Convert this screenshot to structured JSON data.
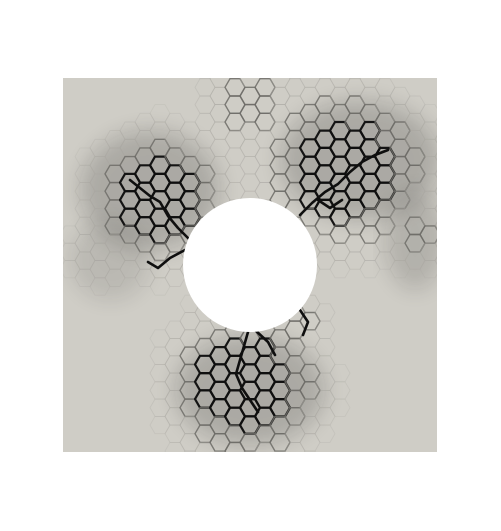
{
  "figure": {
    "plate_color": "#cfcdc6",
    "hole_color": "#ffffff",
    "crack_dark_color": "#0f0f0f",
    "crack_mid_color": "#6e6d69",
    "crack_light_color": "#a9a7a1",
    "background_color": "#ffffff"
  }
}
